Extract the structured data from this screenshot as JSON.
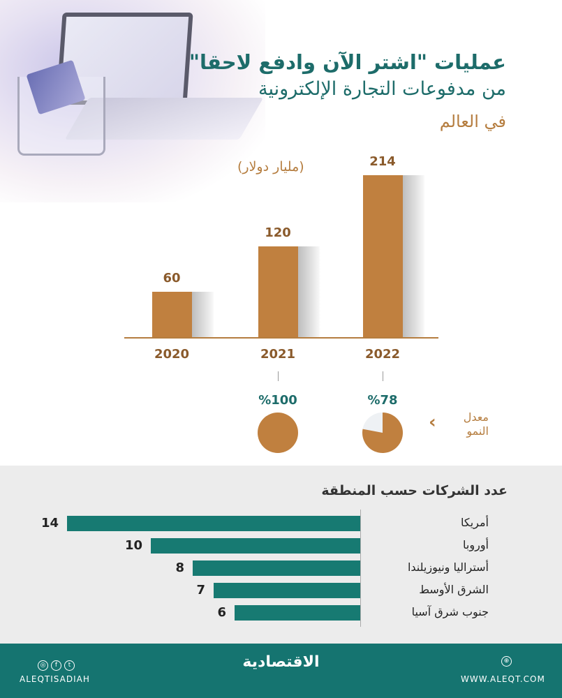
{
  "header": {
    "title_line1": "عمليات \"اشتر الآن وادفع لاحقا\"",
    "title_line2": "من مدفوعات التجارة الإلكترونية",
    "title_line3": "في العالم"
  },
  "chart_data": [
    {
      "type": "bar",
      "unit_label": "(مليار دولار)",
      "categories": [
        "2020",
        "2021",
        "2022"
      ],
      "values": [
        60,
        120,
        214
      ],
      "growth_label": "معدل النمو",
      "growth": [
        {
          "year": "2021",
          "label": "%100",
          "value": 100
        },
        {
          "year": "2022",
          "label": "%78",
          "value": 78
        }
      ],
      "colors": {
        "bar": "#c0803f",
        "pie": "#c0803f"
      }
    },
    {
      "type": "bar",
      "orientation": "horizontal",
      "title": "عدد الشركات حسب المنطقة",
      "categories": [
        "أمريكا",
        "أوروبا",
        "أستراليا ونيوزيلندا",
        "الشرق الأوسط",
        "جنوب شرق آسيا"
      ],
      "values": [
        14,
        10,
        8,
        7,
        6
      ],
      "colors": {
        "bar": "#177a72"
      }
    }
  ],
  "footer": {
    "social_handle": "ALEQTISADIAH",
    "logo": "الاقتصادية",
    "website": "WWW.ALEQT.COM",
    "social_icons": [
      "instagram-icon",
      "facebook-icon",
      "twitter-icon"
    ],
    "web_icon": "globe-icon"
  }
}
